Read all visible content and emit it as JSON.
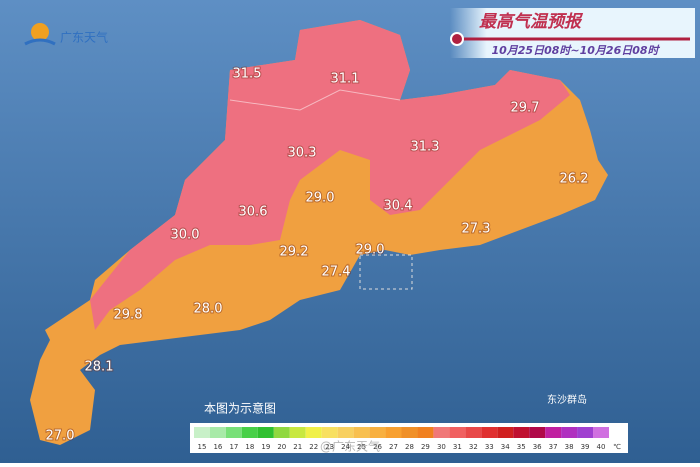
{
  "header": {
    "title": "最高气温预报",
    "period": "10月25日08时~10月26日08时",
    "logo": "广东天气"
  },
  "labels": [
    {
      "value": "31.5"
    },
    {
      "value": "31.1"
    },
    {
      "value": "29.7"
    },
    {
      "value": "30.3"
    },
    {
      "value": "31.3"
    },
    {
      "value": "26.2"
    },
    {
      "value": "29.0"
    },
    {
      "value": "30.6"
    },
    {
      "value": "30.4"
    },
    {
      "value": "30.0"
    },
    {
      "value": "27.3"
    },
    {
      "value": "29.2"
    },
    {
      "value": "29.0"
    },
    {
      "value": "27.4"
    },
    {
      "value": "28.0"
    },
    {
      "value": "29.8"
    },
    {
      "value": "28.1"
    },
    {
      "value": "27.0"
    }
  ],
  "islands": "东沙群岛",
  "note": "本图为示意图",
  "watermark": "@广东天气",
  "legend": {
    "unit": "℃",
    "items": [
      {
        "label": "15",
        "color": "#c8f0c8"
      },
      {
        "label": "16",
        "color": "#a8eaa8"
      },
      {
        "label": "17",
        "color": "#78e078"
      },
      {
        "label": "18",
        "color": "#48d048"
      },
      {
        "label": "19",
        "color": "#30c030"
      },
      {
        "label": "20",
        "color": "#90d840"
      },
      {
        "label": "21",
        "color": "#c8e840"
      },
      {
        "label": "22",
        "color": "#f0f048"
      },
      {
        "label": "23",
        "color": "#f8e060"
      },
      {
        "label": "24",
        "color": "#f8d060"
      },
      {
        "label": "25",
        "color": "#f8c050"
      },
      {
        "label": "26",
        "color": "#f8b040"
      },
      {
        "label": "27",
        "color": "#f8a030"
      },
      {
        "label": "28",
        "color": "#f09028"
      },
      {
        "label": "29",
        "color": "#f08020"
      },
      {
        "label": "30",
        "color": "#f07878"
      },
      {
        "label": "31",
        "color": "#f06060"
      },
      {
        "label": "32",
        "color": "#e84848"
      },
      {
        "label": "33",
        "color": "#e03030"
      },
      {
        "label": "34",
        "color": "#d02020"
      },
      {
        "label": "35",
        "color": "#c01030"
      },
      {
        "label": "36",
        "color": "#b00848"
      },
      {
        "label": "37",
        "color": "#c020a0"
      },
      {
        "label": "38",
        "color": "#b030c0"
      },
      {
        "label": "39",
        "color": "#a040d0"
      },
      {
        "label": "40",
        "color": "#d070e0"
      }
    ]
  }
}
